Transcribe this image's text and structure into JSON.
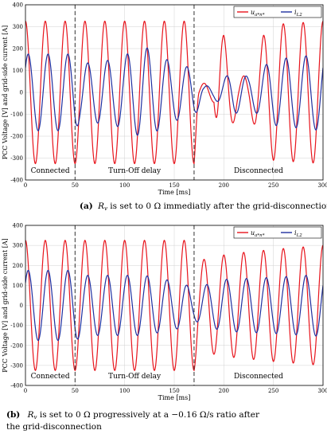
{
  "captions": {
    "a_label": "(a)",
    "a_sym": "R",
    "a_sub": "v",
    "a_text": " is set to 0 Ω immediatly after the grid-disconnection",
    "b_label": "(b)",
    "b_sym": "R",
    "b_sub": "v",
    "b_line1": " is set to 0 Ω progressively at a −0.16 Ω/s ratio after",
    "b_line2": "the grid-disconnection"
  },
  "colors": {
    "voltage": "#e8141c",
    "current": "#1f2fa0",
    "grid": "#d0d0d0",
    "marker": "#333333"
  },
  "chart_data": [
    {
      "type": "line",
      "xlabel": "Time [ms]",
      "ylabel": "PCC Voltage [V] and grid-side current  [A]",
      "xlim": [
        0,
        300
      ],
      "ylim": [
        -400,
        400
      ],
      "x_ticks": [
        "0",
        "50",
        "100",
        "150",
        "200",
        "250",
        "300"
      ],
      "y_ticks": [
        "400",
        "300",
        "200",
        "100",
        "0",
        "-100",
        "-200",
        "-300",
        "-400"
      ],
      "grid": true,
      "legend_position": "top-right",
      "events_ms": [
        50,
        170
      ],
      "regions": [
        "Connected",
        "Turn-Off delay",
        "Disconnected"
      ],
      "series": [
        {
          "name": "u_{a*n*}",
          "legend_main": "u",
          "legend_sub": "a*n*",
          "frequency_hz": 50,
          "phase_deg": 90,
          "envelope": [
            [
              0,
              325
            ],
            [
              170,
              325
            ],
            [
              175,
              40
            ],
            [
              190,
              45
            ],
            [
              195,
              280
            ],
            [
              200,
              260
            ],
            [
              215,
              70
            ],
            [
              225,
              80
            ],
            [
              240,
              260
            ],
            [
              250,
              310
            ],
            [
              300,
              325
            ]
          ]
        },
        {
          "name": "i_{L2}",
          "legend_main": "i",
          "legend_sub": "L2",
          "frequency_hz": 50,
          "phase_deg": 40,
          "envelope": [
            [
              0,
              175
            ],
            [
              50,
              175
            ],
            [
              55,
              130
            ],
            [
              90,
              150
            ],
            [
              120,
              210
            ],
            [
              150,
              130
            ],
            [
              170,
              110
            ],
            [
              180,
              30
            ],
            [
              190,
              30
            ],
            [
              210,
              100
            ],
            [
              225,
              70
            ],
            [
              250,
              150
            ],
            [
              300,
              175
            ]
          ]
        }
      ]
    },
    {
      "type": "line",
      "xlabel": "Time [ms]",
      "ylabel": "PCC Voltage [V] and grid-side current  [A]",
      "xlim": [
        0,
        300
      ],
      "ylim": [
        -400,
        400
      ],
      "x_ticks": [
        "0",
        "50",
        "100",
        "150",
        "200",
        "250",
        "300"
      ],
      "y_ticks": [
        "400",
        "300",
        "200",
        "100",
        "0",
        "-100",
        "-200",
        "-300",
        "-400"
      ],
      "grid": true,
      "legend_position": "top-right",
      "events_ms": [
        50,
        170
      ],
      "regions": [
        "Connected",
        "Turn-Off delay",
        "Disconnected"
      ],
      "series": [
        {
          "name": "u_{a*n*}",
          "legend_main": "u",
          "legend_sub": "a*n*",
          "frequency_hz": 50,
          "phase_deg": 90,
          "envelope": [
            [
              0,
              325
            ],
            [
              170,
              325
            ],
            [
              175,
              220
            ],
            [
              185,
              240
            ],
            [
              210,
              260
            ],
            [
              250,
              280
            ],
            [
              300,
              300
            ]
          ]
        },
        {
          "name": "i_{L2}",
          "legend_main": "i",
          "legend_sub": "L2",
          "frequency_hz": 50,
          "phase_deg": 40,
          "envelope": [
            [
              0,
              175
            ],
            [
              50,
              175
            ],
            [
              60,
              150
            ],
            [
              120,
              150
            ],
            [
              160,
              110
            ],
            [
              170,
              75
            ],
            [
              180,
              100
            ],
            [
              200,
              130
            ],
            [
              250,
              140
            ],
            [
              300,
              155
            ]
          ]
        }
      ]
    }
  ]
}
